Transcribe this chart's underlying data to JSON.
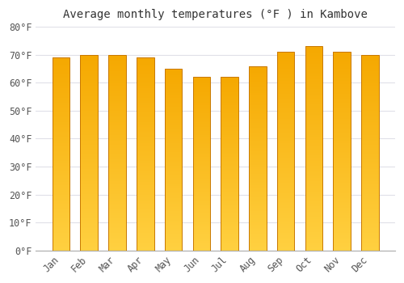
{
  "title": "Average monthly temperatures (°F ) in Kambove",
  "months": [
    "Jan",
    "Feb",
    "Mar",
    "Apr",
    "May",
    "Jun",
    "Jul",
    "Aug",
    "Sep",
    "Oct",
    "Nov",
    "Dec"
  ],
  "values": [
    69,
    70,
    70,
    69,
    65,
    62,
    62,
    66,
    71,
    73,
    71,
    70
  ],
  "bar_color_top": "#F5A800",
  "bar_color_bottom": "#FFD040",
  "bar_edge_color": "#C87800",
  "background_color": "#FFFFFF",
  "plot_bg_color": "#FFFFFF",
  "grid_color": "#E0E0E8",
  "text_color": "#555555",
  "ylim": [
    0,
    80
  ],
  "yticks": [
    0,
    10,
    20,
    30,
    40,
    50,
    60,
    70,
    80
  ],
  "title_fontsize": 10,
  "tick_fontsize": 8.5,
  "bar_width": 0.62
}
